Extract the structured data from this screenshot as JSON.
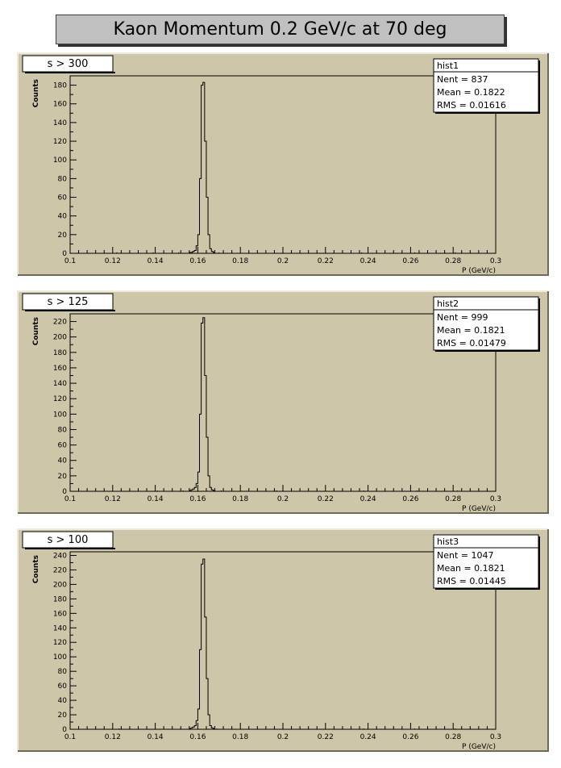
{
  "page": {
    "title": "Kaon Momentum 0.2 GeV/c at 70 deg"
  },
  "colors": {
    "pad": "#cdc6a9",
    "frame": "#000000",
    "line": "#000000",
    "title_box": "#c0c0c0"
  },
  "chart_data": [
    {
      "type": "histogram",
      "cut_label": "s > 300",
      "stats": {
        "name": "hist1",
        "nent": "Nent = 837",
        "mean": "Mean  = 0.1822",
        "rms": "RMS   = 0.01616"
      },
      "xlabel": "P (GeV/c)",
      "ylabel": "Counts",
      "xlim": [
        0.1,
        0.3
      ],
      "ylim": [
        0,
        190
      ],
      "xticks": [
        0.1,
        0.12,
        0.14,
        0.16,
        0.18,
        0.2,
        0.22,
        0.24,
        0.26,
        0.28,
        0.3
      ],
      "xtick_labels": [
        "0.1",
        "0.12",
        "0.14",
        "0.16",
        "0.18",
        "0.2",
        "0.22",
        "0.24",
        "0.26",
        "0.28",
        "0.3"
      ],
      "yticks": [
        0,
        20,
        40,
        60,
        80,
        100,
        120,
        140,
        160,
        180
      ],
      "ytick_labels": [
        "0",
        "20",
        "40",
        "60",
        "80",
        "100",
        "120",
        "140",
        "160",
        "180"
      ],
      "bins": [
        [
          0.156,
          1
        ],
        [
          0.1568,
          1
        ],
        [
          0.1576,
          2
        ],
        [
          0.1584,
          3
        ],
        [
          0.1592,
          8
        ],
        [
          0.16,
          20
        ],
        [
          0.1608,
          80
        ],
        [
          0.1616,
          180
        ],
        [
          0.1624,
          183
        ],
        [
          0.1632,
          120
        ],
        [
          0.164,
          60
        ],
        [
          0.1648,
          20
        ],
        [
          0.1656,
          5
        ],
        [
          0.1664,
          2
        ],
        [
          0.1672,
          1
        ]
      ],
      "spikes": [
        0.122,
        0.139,
        0.151,
        0.17,
        0.196,
        0.237,
        0.262,
        0.281
      ]
    },
    {
      "type": "histogram",
      "cut_label": "s > 125",
      "stats": {
        "name": "hist2",
        "nent": "Nent = 999",
        "mean": "Mean  = 0.1821",
        "rms": "RMS   = 0.01479"
      },
      "xlabel": "P (GeV/c)",
      "ylabel": "Counts",
      "xlim": [
        0.1,
        0.3
      ],
      "ylim": [
        0,
        230
      ],
      "xticks": [
        0.1,
        0.12,
        0.14,
        0.16,
        0.18,
        0.2,
        0.22,
        0.24,
        0.26,
        0.28,
        0.3
      ],
      "xtick_labels": [
        "0.1",
        "0.12",
        "0.14",
        "0.16",
        "0.18",
        "0.2",
        "0.22",
        "0.24",
        "0.26",
        "0.28",
        "0.3"
      ],
      "yticks": [
        0,
        20,
        40,
        60,
        80,
        100,
        120,
        140,
        160,
        180,
        200,
        220
      ],
      "ytick_labels": [
        "0",
        "20",
        "40",
        "60",
        "80",
        "100",
        "120",
        "140",
        "160",
        "180",
        "200",
        "220"
      ],
      "bins": [
        [
          0.156,
          1
        ],
        [
          0.1568,
          2
        ],
        [
          0.1576,
          3
        ],
        [
          0.1584,
          5
        ],
        [
          0.1592,
          10
        ],
        [
          0.16,
          25
        ],
        [
          0.1608,
          100
        ],
        [
          0.1616,
          218
        ],
        [
          0.1624,
          225
        ],
        [
          0.1632,
          150
        ],
        [
          0.164,
          70
        ],
        [
          0.1648,
          20
        ],
        [
          0.1656,
          5
        ],
        [
          0.1664,
          2
        ],
        [
          0.1672,
          1
        ]
      ],
      "spikes": [
        0.124,
        0.141,
        0.153,
        0.171,
        0.197,
        0.238,
        0.263,
        0.282
      ]
    },
    {
      "type": "histogram",
      "cut_label": "s > 100",
      "stats": {
        "name": "hist3",
        "nent": "Nent = 1047",
        "mean": "Mean  = 0.1821",
        "rms": "RMS   = 0.01445"
      },
      "xlabel": "P (GeV/c)",
      "ylabel": "Counts",
      "xlim": [
        0.1,
        0.3
      ],
      "ylim": [
        0,
        245
      ],
      "xticks": [
        0.1,
        0.12,
        0.14,
        0.16,
        0.18,
        0.2,
        0.22,
        0.24,
        0.26,
        0.28,
        0.3
      ],
      "xtick_labels": [
        "0.1",
        "0.12",
        "0.14",
        "0.16",
        "0.18",
        "0.2",
        "0.22",
        "0.24",
        "0.26",
        "0.28",
        "0.3"
      ],
      "yticks": [
        0,
        20,
        40,
        60,
        80,
        100,
        120,
        140,
        160,
        180,
        200,
        220,
        240
      ],
      "ytick_labels": [
        "0",
        "20",
        "40",
        "60",
        "80",
        "100",
        "120",
        "140",
        "160",
        "180",
        "200",
        "220",
        "240"
      ],
      "bins": [
        [
          0.156,
          1
        ],
        [
          0.1568,
          2
        ],
        [
          0.1576,
          3
        ],
        [
          0.1584,
          5
        ],
        [
          0.1592,
          12
        ],
        [
          0.16,
          28
        ],
        [
          0.1608,
          110
        ],
        [
          0.1616,
          228
        ],
        [
          0.1624,
          235
        ],
        [
          0.1632,
          155
        ],
        [
          0.164,
          70
        ],
        [
          0.1648,
          20
        ],
        [
          0.1656,
          5
        ],
        [
          0.1664,
          2
        ],
        [
          0.1672,
          1
        ]
      ],
      "spikes": [
        0.123,
        0.14,
        0.152,
        0.169,
        0.196,
        0.238,
        0.262,
        0.281
      ]
    }
  ]
}
